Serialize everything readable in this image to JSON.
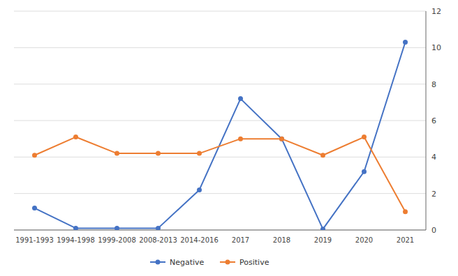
{
  "chart_data": {
    "type": "line",
    "categories": [
      "1991-1993",
      "1994-1998",
      "1999-2008",
      "2008-2013",
      "2014-2016",
      "2017",
      "2018",
      "2019",
      "2020",
      "2021"
    ],
    "series": [
      {
        "name": "Negative",
        "color": "#4472c4",
        "marker": "circle",
        "values": [
          1.2,
          0.1,
          0.1,
          0.1,
          2.2,
          7.2,
          5.0,
          0.05,
          3.2,
          10.3
        ]
      },
      {
        "name": "Positive",
        "color": "#ed7d31",
        "marker": "circle",
        "values": [
          4.1,
          5.1,
          4.2,
          4.2,
          4.2,
          5.0,
          5.0,
          4.1,
          5.1,
          1.0
        ]
      }
    ],
    "ylim": [
      0,
      12
    ],
    "yticks": [
      0,
      2,
      4,
      6,
      8,
      10,
      12
    ],
    "grid": true,
    "legend": "bottom"
  }
}
